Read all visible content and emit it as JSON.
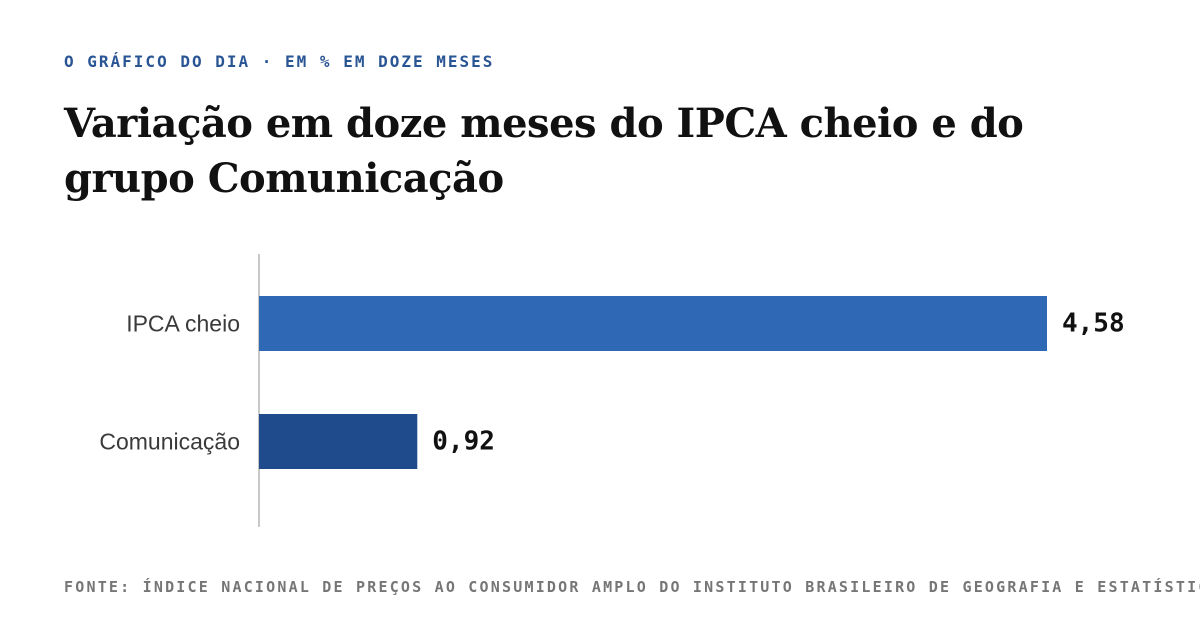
{
  "header": {
    "kicker": "O GRÁFICO DO DIA · EM % EM DOZE MESES",
    "title": "Variação em doze meses do IPCA cheio e do grupo Comunicação"
  },
  "footer": {
    "source": "FONTE: ÍNDICE NACIONAL DE PREÇOS AO CONSUMIDOR AMPLO DO INSTITUTO BRASILEIRO DE GEOGRAFIA E ESTATÍSTICA"
  },
  "chart_data": {
    "type": "bar",
    "orientation": "horizontal",
    "title": "Variação em doze meses do IPCA cheio e do grupo Comunicação",
    "xlabel": "",
    "ylabel": "",
    "xlim": [
      0,
      4.58
    ],
    "grid": false,
    "categories": [
      "IPCA cheio",
      "Comunicação"
    ],
    "values": [
      4.58,
      0.92
    ],
    "value_labels": [
      "4,58",
      "0,92"
    ],
    "colors": [
      "#2f68b4",
      "#1f4b8c"
    ]
  },
  "colors": {
    "kicker": "#2a5594",
    "title": "#111111",
    "axis": "#c8c8c8",
    "category_label": "#3a3a3a",
    "value_label": "#111111",
    "footer": "#767676"
  }
}
